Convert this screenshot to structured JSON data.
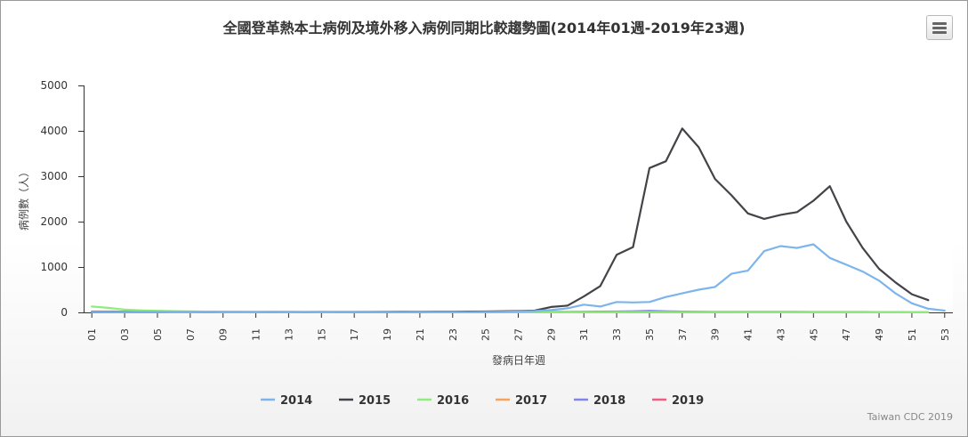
{
  "icons": {
    "menu": "hamburger-menu-icon"
  },
  "credit": "Taiwan CDC 2019",
  "colors": {
    "2014": "#7cb5ec",
    "2015": "#434348",
    "2016": "#90ed7d",
    "2017": "#f7a35c",
    "2018": "#8085e9",
    "2019": "#f15c80"
  },
  "chart_data": {
    "type": "line",
    "title": "全國登革熱本土病例及境外移入病例同期比較趨勢圖(2014年01週-2019年23週)",
    "xlabel": "發病日年週",
    "ylabel": "病例數（人）",
    "ylim": [
      0,
      5000
    ],
    "yticks": [
      0,
      1000,
      2000,
      3000,
      4000,
      5000
    ],
    "categories": [
      "01",
      "02",
      "03",
      "04",
      "05",
      "06",
      "07",
      "08",
      "09",
      "10",
      "11",
      "12",
      "13",
      "14",
      "15",
      "16",
      "17",
      "18",
      "19",
      "20",
      "21",
      "22",
      "23",
      "24",
      "25",
      "26",
      "27",
      "28",
      "29",
      "30",
      "31",
      "32",
      "33",
      "34",
      "35",
      "36",
      "37",
      "38",
      "39",
      "40",
      "41",
      "42",
      "43",
      "44",
      "45",
      "46",
      "47",
      "48",
      "49",
      "50",
      "51",
      "52",
      "53"
    ],
    "xtick_labels": [
      "01",
      "03",
      "05",
      "07",
      "09",
      "11",
      "13",
      "15",
      "17",
      "19",
      "21",
      "23",
      "25",
      "27",
      "29",
      "31",
      "33",
      "35",
      "37",
      "39",
      "41",
      "43",
      "45",
      "47",
      "49",
      "51",
      "53"
    ],
    "legend_position": "bottom-center",
    "grid": false,
    "series": [
      {
        "name": "2014",
        "values": [
          5,
          3,
          4,
          3,
          3,
          2,
          2,
          3,
          2,
          2,
          2,
          3,
          2,
          3,
          2,
          3,
          3,
          3,
          4,
          3,
          5,
          5,
          7,
          6,
          10,
          12,
          20,
          30,
          50,
          90,
          170,
          130,
          230,
          220,
          230,
          340,
          420,
          500,
          560,
          850,
          920,
          1350,
          1460,
          1420,
          1500,
          1200,
          1050,
          900,
          700,
          420,
          200,
          80,
          40
        ]
      },
      {
        "name": "2015",
        "values": [
          5,
          4,
          5,
          4,
          3,
          3,
          3,
          3,
          4,
          4,
          4,
          5,
          5,
          4,
          5,
          5,
          6,
          7,
          8,
          9,
          10,
          12,
          15,
          18,
          20,
          25,
          30,
          40,
          120,
          150,
          350,
          580,
          1270,
          1440,
          3180,
          3330,
          4050,
          3640,
          2940,
          2580,
          2180,
          2060,
          2150,
          2210,
          2460,
          2780,
          2000,
          1420,
          960,
          660,
          400,
          270,
          null
        ]
      },
      {
        "name": "2016",
        "values": [
          130,
          100,
          60,
          45,
          35,
          28,
          22,
          18,
          15,
          12,
          10,
          9,
          8,
          7,
          6,
          6,
          5,
          5,
          4,
          4,
          4,
          3,
          3,
          3,
          3,
          3,
          3,
          3,
          3,
          3,
          3,
          3,
          3,
          3,
          3,
          3,
          3,
          3,
          3,
          3,
          3,
          3,
          3,
          3,
          3,
          3,
          3,
          3,
          3,
          3,
          3,
          3,
          null
        ]
      },
      {
        "name": "2017",
        "values": [
          8,
          6,
          5,
          4,
          4,
          3,
          3,
          3,
          3,
          3,
          3,
          3,
          3,
          3,
          3,
          3,
          3,
          3,
          3,
          3,
          3,
          3,
          3,
          3,
          3,
          3,
          3,
          3,
          3,
          3,
          3,
          3,
          4,
          5,
          6,
          6,
          5,
          5,
          5,
          5,
          4,
          4,
          4,
          4,
          4,
          4,
          4,
          4,
          3,
          3,
          3,
          3,
          null
        ]
      },
      {
        "name": "2018",
        "values": [
          10,
          8,
          7,
          6,
          5,
          5,
          5,
          5,
          5,
          5,
          5,
          5,
          5,
          5,
          5,
          5,
          5,
          5,
          5,
          5,
          8,
          10,
          12,
          14,
          15,
          14,
          12,
          12,
          12,
          14,
          16,
          18,
          20,
          25,
          35,
          25,
          18,
          15,
          12,
          12,
          12,
          12,
          12,
          12,
          10,
          10,
          10,
          10,
          8,
          8,
          6,
          5,
          null
        ]
      },
      {
        "name": "2019",
        "values": [
          20,
          18,
          15,
          14,
          12,
          12,
          11,
          11,
          10,
          10,
          10,
          10,
          10,
          10,
          10,
          10,
          10,
          10,
          12,
          12,
          12,
          12,
          10,
          null,
          null,
          null,
          null,
          null,
          null,
          null,
          null,
          null,
          null,
          null,
          null,
          null,
          null,
          null,
          null,
          null,
          null,
          null,
          null,
          null,
          null,
          null,
          null,
          null,
          null,
          null,
          null,
          null,
          null
        ]
      }
    ]
  }
}
